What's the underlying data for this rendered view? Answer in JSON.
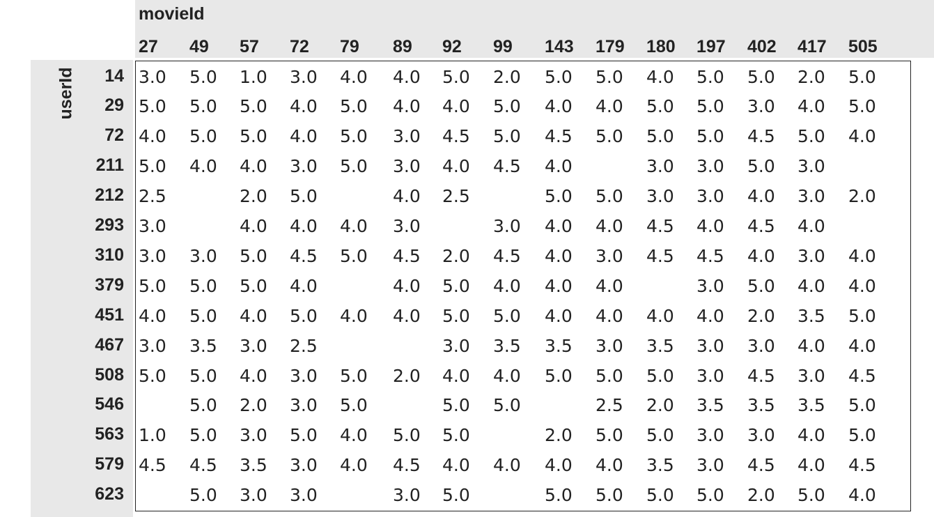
{
  "table": {
    "column_axis_label": "movieId",
    "row_axis_label": "userId",
    "movie_ids": [
      "27",
      "49",
      "57",
      "72",
      "79",
      "89",
      "92",
      "99",
      "143",
      "179",
      "180",
      "197",
      "402",
      "417",
      "505"
    ],
    "user_ids": [
      "14",
      "29",
      "72",
      "211",
      "212",
      "293",
      "310",
      "379",
      "451",
      "467",
      "508",
      "546",
      "563",
      "579",
      "623"
    ],
    "ratings": [
      [
        "3.0",
        "5.0",
        "1.0",
        "3.0",
        "4.0",
        "4.0",
        "5.0",
        "2.0",
        "5.0",
        "5.0",
        "4.0",
        "5.0",
        "5.0",
        "2.0",
        "5.0"
      ],
      [
        "5.0",
        "5.0",
        "5.0",
        "4.0",
        "5.0",
        "4.0",
        "4.0",
        "5.0",
        "4.0",
        "4.0",
        "5.0",
        "5.0",
        "3.0",
        "4.0",
        "5.0"
      ],
      [
        "4.0",
        "5.0",
        "5.0",
        "4.0",
        "5.0",
        "3.0",
        "4.5",
        "5.0",
        "4.5",
        "5.0",
        "5.0",
        "5.0",
        "4.5",
        "5.0",
        "4.0"
      ],
      [
        "5.0",
        "4.0",
        "4.0",
        "3.0",
        "5.0",
        "3.0",
        "4.0",
        "4.5",
        "4.0",
        "",
        "3.0",
        "3.0",
        "5.0",
        "3.0",
        ""
      ],
      [
        "2.5",
        "",
        "2.0",
        "5.0",
        "",
        "4.0",
        "2.5",
        "",
        "5.0",
        "5.0",
        "3.0",
        "3.0",
        "4.0",
        "3.0",
        "2.0"
      ],
      [
        "3.0",
        "",
        "4.0",
        "4.0",
        "4.0",
        "3.0",
        "",
        "3.0",
        "4.0",
        "4.0",
        "4.5",
        "4.0",
        "4.5",
        "4.0",
        ""
      ],
      [
        "3.0",
        "3.0",
        "5.0",
        "4.5",
        "5.0",
        "4.5",
        "2.0",
        "4.5",
        "4.0",
        "3.0",
        "4.5",
        "4.5",
        "4.0",
        "3.0",
        "4.0"
      ],
      [
        "5.0",
        "5.0",
        "5.0",
        "4.0",
        "",
        "4.0",
        "5.0",
        "4.0",
        "4.0",
        "4.0",
        "",
        "3.0",
        "5.0",
        "4.0",
        "4.0"
      ],
      [
        "4.0",
        "5.0",
        "4.0",
        "5.0",
        "4.0",
        "4.0",
        "5.0",
        "5.0",
        "4.0",
        "4.0",
        "4.0",
        "4.0",
        "2.0",
        "3.5",
        "5.0"
      ],
      [
        "3.0",
        "3.5",
        "3.0",
        "2.5",
        "",
        "",
        "3.0",
        "3.5",
        "3.5",
        "3.0",
        "3.5",
        "3.0",
        "3.0",
        "4.0",
        "4.0"
      ],
      [
        "5.0",
        "5.0",
        "4.0",
        "3.0",
        "5.0",
        "2.0",
        "4.0",
        "4.0",
        "5.0",
        "5.0",
        "5.0",
        "3.0",
        "4.5",
        "3.0",
        "4.5"
      ],
      [
        "",
        "5.0",
        "2.0",
        "3.0",
        "5.0",
        "",
        "5.0",
        "5.0",
        "",
        "2.5",
        "2.0",
        "3.5",
        "3.5",
        "3.5",
        "5.0"
      ],
      [
        "1.0",
        "5.0",
        "3.0",
        "5.0",
        "4.0",
        "5.0",
        "5.0",
        "",
        "2.0",
        "5.0",
        "5.0",
        "3.0",
        "3.0",
        "4.0",
        "5.0"
      ],
      [
        "4.5",
        "4.5",
        "3.5",
        "3.0",
        "4.0",
        "4.5",
        "4.0",
        "4.0",
        "4.0",
        "4.0",
        "3.5",
        "3.0",
        "4.5",
        "4.0",
        "4.5"
      ],
      [
        "",
        "5.0",
        "3.0",
        "3.0",
        "",
        "3.0",
        "5.0",
        "",
        "5.0",
        "5.0",
        "5.0",
        "5.0",
        "2.0",
        "5.0",
        "4.0"
      ]
    ]
  }
}
